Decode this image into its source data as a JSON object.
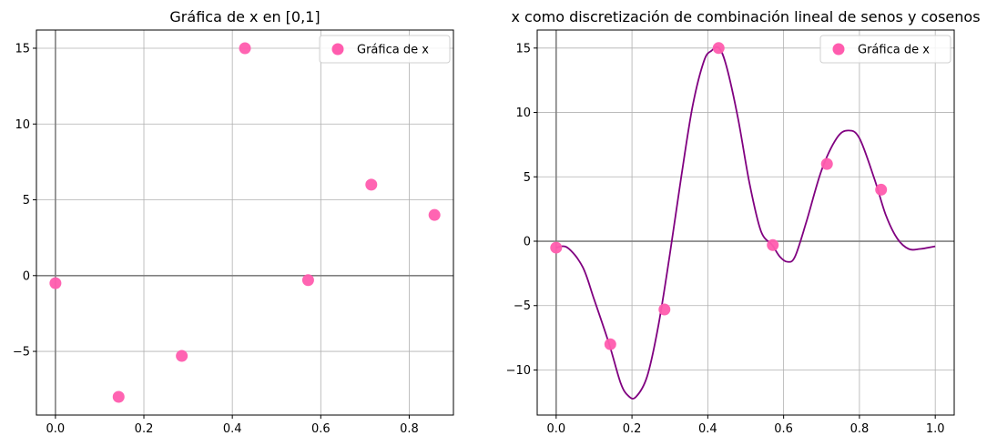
{
  "chart_data": [
    {
      "type": "scatter",
      "title": "Gráfica de x en [0,1]",
      "xlim": [
        -0.043,
        0.9
      ],
      "ylim": [
        -9.2,
        16.2
      ],
      "xticks": [
        0.0,
        0.2,
        0.4,
        0.6,
        0.8
      ],
      "xtick_labels": [
        "0.0",
        "0.2",
        "0.4",
        "0.6",
        "0.8"
      ],
      "yticks": [
        -5,
        0,
        5,
        10,
        15
      ],
      "ytick_labels": [
        "−5",
        "0",
        "5",
        "10",
        "15"
      ],
      "grid": true,
      "legend": {
        "placement": "top-right",
        "entries": [
          "Gráfica de x"
        ]
      },
      "series": [
        {
          "name": "Gráfica de x",
          "color": "#ff5cae",
          "x": [
            0.0,
            0.142857,
            0.285714,
            0.428571,
            0.571429,
            0.714286,
            0.857143
          ],
          "y": [
            -0.5,
            -8.0,
            -5.3,
            15.0,
            -0.3,
            6.0,
            4.0
          ]
        }
      ]
    },
    {
      "type": "line",
      "title": "x como discretización de combinación lineal de senos y cosenos",
      "xlim": [
        -0.05,
        1.05
      ],
      "ylim": [
        -13.5,
        16.4
      ],
      "xticks": [
        0.0,
        0.2,
        0.4,
        0.6,
        0.8,
        1.0
      ],
      "xtick_labels": [
        "0.0",
        "0.2",
        "0.4",
        "0.6",
        "0.8",
        "1.0"
      ],
      "yticks": [
        -10,
        -5,
        0,
        5,
        10,
        15
      ],
      "ytick_labels": [
        "−10",
        "−5",
        "0",
        "5",
        "10",
        "15"
      ],
      "grid": true,
      "legend": {
        "placement": "top-right",
        "entries": [
          "Gráfica de x"
        ]
      },
      "series": [
        {
          "name": "Gráfica de x",
          "color": "#ff5cae",
          "kind": "scatter",
          "x": [
            0.0,
            0.142857,
            0.285714,
            0.428571,
            0.571429,
            0.714286,
            0.857143
          ],
          "y": [
            -0.5,
            -8.0,
            -5.3,
            15.0,
            -0.3,
            6.0,
            4.0
          ]
        },
        {
          "color": "#800080",
          "kind": "line",
          "x": [
            0.0,
            0.03,
            0.07,
            0.1,
            0.14,
            0.17,
            0.19,
            0.21,
            0.24,
            0.27,
            0.3,
            0.33,
            0.36,
            0.39,
            0.41,
            0.43,
            0.45,
            0.48,
            0.51,
            0.54,
            0.57,
            0.59,
            0.61,
            0.63,
            0.66,
            0.7,
            0.74,
            0.77,
            0.8,
            0.84,
            0.87,
            0.9,
            0.93,
            0.96,
            1.0
          ],
          "y": [
            -0.5,
            -0.5,
            -2.0,
            -4.5,
            -8.0,
            -11.0,
            -12.0,
            -12.1,
            -10.5,
            -6.5,
            -1.0,
            5.0,
            10.5,
            14.0,
            14.8,
            15.0,
            13.5,
            9.5,
            4.5,
            0.8,
            -0.3,
            -1.2,
            -1.6,
            -1.2,
            1.5,
            5.5,
            8.0,
            8.6,
            8.0,
            4.8,
            2.0,
            0.2,
            -0.6,
            -0.6,
            -0.4
          ]
        }
      ]
    }
  ]
}
